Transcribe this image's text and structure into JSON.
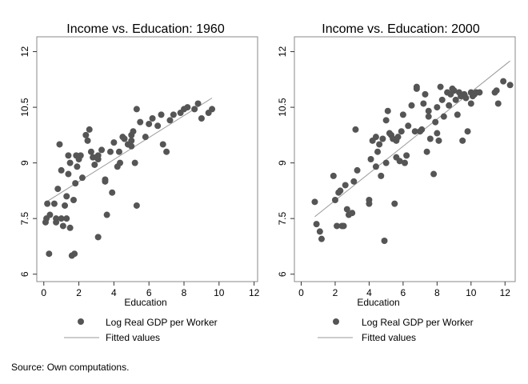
{
  "chart_data": [
    {
      "type": "scatter",
      "title": "Income vs. Education: 1960",
      "xlabel": "Education",
      "ylabel": "",
      "xlim": [
        -0.4,
        12.2
      ],
      "ylim": [
        5.8,
        12.4
      ],
      "xticks": [
        0,
        2,
        4,
        6,
        8,
        10,
        12
      ],
      "yticks": [
        6,
        7.5,
        9,
        10.5,
        12
      ],
      "ytick_labels": [
        "6",
        "7.5",
        "9",
        "10.5",
        "12"
      ],
      "grid": false,
      "series": [
        {
          "name": "Log Real GDP per Worker",
          "kind": "scatter",
          "color": "#555555",
          "points": [
            [
              0.1,
              7.4
            ],
            [
              0.15,
              7.5
            ],
            [
              0.2,
              7.9
            ],
            [
              0.3,
              6.55
            ],
            [
              0.35,
              7.6
            ],
            [
              0.6,
              7.9
            ],
            [
              0.7,
              7.5
            ],
            [
              0.7,
              7.4
            ],
            [
              0.8,
              8.3
            ],
            [
              0.9,
              9.5
            ],
            [
              1.0,
              7.5
            ],
            [
              1.0,
              8.8
            ],
            [
              1.1,
              7.3
            ],
            [
              1.2,
              7.85
            ],
            [
              1.3,
              7.5
            ],
            [
              1.3,
              8.1
            ],
            [
              1.4,
              8.7
            ],
            [
              1.4,
              9.2
            ],
            [
              1.5,
              9.0
            ],
            [
              1.5,
              7.25
            ],
            [
              1.6,
              6.5
            ],
            [
              1.7,
              8.0
            ],
            [
              1.75,
              6.55
            ],
            [
              1.8,
              8.45
            ],
            [
              1.85,
              9.2
            ],
            [
              1.9,
              8.9
            ],
            [
              2.0,
              9.1
            ],
            [
              2.1,
              9.2
            ],
            [
              2.2,
              8.6
            ],
            [
              2.4,
              9.75
            ],
            [
              2.5,
              9.6
            ],
            [
              2.6,
              9.9
            ],
            [
              2.7,
              9.3
            ],
            [
              2.8,
              9.15
            ],
            [
              2.9,
              8.95
            ],
            [
              3.0,
              9.15
            ],
            [
              3.1,
              9.1
            ],
            [
              3.1,
              9.2
            ],
            [
              3.1,
              7.0
            ],
            [
              3.3,
              9.35
            ],
            [
              3.5,
              8.5
            ],
            [
              3.5,
              8.55
            ],
            [
              3.6,
              7.6
            ],
            [
              3.8,
              9.3
            ],
            [
              3.9,
              8.2
            ],
            [
              4.0,
              9.55
            ],
            [
              4.2,
              8.9
            ],
            [
              4.3,
              9.3
            ],
            [
              4.35,
              9.0
            ],
            [
              4.5,
              9.7
            ],
            [
              4.6,
              9.65
            ],
            [
              4.8,
              9.5
            ],
            [
              5.0,
              9.45
            ],
            [
              5.0,
              9.6
            ],
            [
              5.0,
              9.75
            ],
            [
              5.1,
              9.85
            ],
            [
              5.2,
              9.0
            ],
            [
              5.3,
              10.45
            ],
            [
              5.3,
              7.85
            ],
            [
              5.5,
              10.1
            ],
            [
              5.8,
              9.7
            ],
            [
              6.0,
              10.05
            ],
            [
              6.2,
              10.2
            ],
            [
              6.5,
              10.0
            ],
            [
              6.7,
              10.3
            ],
            [
              6.8,
              9.5
            ],
            [
              7.0,
              9.3
            ],
            [
              7.2,
              10.15
            ],
            [
              7.4,
              10.3
            ],
            [
              7.8,
              10.35
            ],
            [
              8.0,
              10.45
            ],
            [
              8.2,
              10.5
            ],
            [
              8.6,
              10.45
            ],
            [
              8.8,
              10.6
            ],
            [
              9.0,
              10.2
            ],
            [
              9.4,
              10.35
            ],
            [
              9.6,
              10.45
            ]
          ]
        },
        {
          "name": "Fitted values",
          "kind": "line",
          "color": "#999999",
          "points": [
            [
              0.15,
              7.95
            ],
            [
              9.6,
              10.75
            ]
          ]
        }
      ]
    },
    {
      "type": "scatter",
      "title": "Income vs. Education: 2000",
      "xlabel": "Education",
      "ylabel": "",
      "xlim": [
        -0.4,
        12.6
      ],
      "ylim": [
        5.8,
        12.4
      ],
      "xticks": [
        0,
        2,
        4,
        6,
        8,
        10,
        12
      ],
      "yticks": [
        6,
        7.5,
        9,
        10.5,
        12
      ],
      "ytick_labels": [
        "6",
        "7.5",
        "9",
        "10.5",
        "12"
      ],
      "grid": false,
      "series": [
        {
          "name": "Log Real GDP per Worker",
          "kind": "scatter",
          "color": "#555555",
          "points": [
            [
              0.8,
              7.95
            ],
            [
              0.9,
              7.35
            ],
            [
              1.1,
              7.15
            ],
            [
              1.2,
              6.95
            ],
            [
              1.9,
              8.65
            ],
            [
              2.0,
              8.0
            ],
            [
              2.1,
              7.3
            ],
            [
              2.2,
              8.2
            ],
            [
              2.3,
              8.25
            ],
            [
              2.4,
              7.3
            ],
            [
              2.5,
              7.3
            ],
            [
              2.6,
              8.4
            ],
            [
              2.7,
              7.75
            ],
            [
              2.8,
              7.6
            ],
            [
              3.0,
              7.65
            ],
            [
              3.1,
              8.5
            ],
            [
              3.2,
              9.9
            ],
            [
              3.3,
              8.8
            ],
            [
              4.0,
              7.9
            ],
            [
              4.0,
              8.0
            ],
            [
              4.1,
              9.1
            ],
            [
              4.2,
              9.6
            ],
            [
              4.4,
              8.9
            ],
            [
              4.4,
              9.7
            ],
            [
              4.5,
              9.3
            ],
            [
              4.6,
              9.5
            ],
            [
              4.7,
              8.65
            ],
            [
              4.8,
              9.65
            ],
            [
              4.9,
              6.9
            ],
            [
              5.0,
              10.15
            ],
            [
              5.0,
              9.0
            ],
            [
              5.1,
              10.4
            ],
            [
              5.2,
              9.8
            ],
            [
              5.3,
              9.75
            ],
            [
              5.4,
              9.65
            ],
            [
              5.5,
              7.9
            ],
            [
              5.6,
              9.6
            ],
            [
              5.6,
              9.15
            ],
            [
              5.7,
              9.7
            ],
            [
              5.8,
              9.05
            ],
            [
              5.9,
              9.85
            ],
            [
              6.0,
              10.3
            ],
            [
              6.1,
              9.0
            ],
            [
              6.2,
              9.2
            ],
            [
              6.3,
              10.0
            ],
            [
              6.5,
              10.55
            ],
            [
              6.7,
              9.85
            ],
            [
              6.8,
              11.05
            ],
            [
              6.8,
              11.0
            ],
            [
              7.0,
              9.85
            ],
            [
              7.1,
              9.9
            ],
            [
              7.2,
              10.6
            ],
            [
              7.3,
              10.85
            ],
            [
              7.4,
              9.3
            ],
            [
              7.5,
              10.4
            ],
            [
              7.5,
              10.25
            ],
            [
              7.6,
              9.65
            ],
            [
              7.8,
              8.7
            ],
            [
              7.9,
              10.1
            ],
            [
              8.0,
              10.5
            ],
            [
              8.0,
              9.8
            ],
            [
              8.1,
              9.6
            ],
            [
              8.2,
              11.05
            ],
            [
              8.3,
              10.7
            ],
            [
              8.4,
              10.25
            ],
            [
              8.6,
              10.9
            ],
            [
              8.7,
              10.55
            ],
            [
              8.8,
              10.85
            ],
            [
              8.9,
              11.0
            ],
            [
              9.0,
              10.95
            ],
            [
              9.1,
              10.7
            ],
            [
              9.2,
              10.3
            ],
            [
              9.3,
              10.9
            ],
            [
              9.4,
              10.8
            ],
            [
              9.5,
              9.6
            ],
            [
              9.6,
              10.85
            ],
            [
              9.7,
              10.75
            ],
            [
              9.8,
              9.85
            ],
            [
              10.0,
              10.6
            ],
            [
              10.0,
              10.9
            ],
            [
              10.1,
              10.8
            ],
            [
              10.2,
              10.85
            ],
            [
              10.3,
              10.9
            ],
            [
              10.5,
              10.9
            ],
            [
              11.4,
              10.9
            ],
            [
              11.5,
              10.95
            ],
            [
              11.6,
              10.6
            ],
            [
              11.9,
              11.2
            ],
            [
              12.3,
              11.1
            ]
          ]
        },
        {
          "name": "Fitted values",
          "kind": "line",
          "color": "#999999",
          "points": [
            [
              0.8,
              7.55
            ],
            [
              12.3,
              11.75
            ]
          ]
        }
      ]
    }
  ],
  "legend": {
    "items": [
      {
        "label": "Log Real GDP per Worker",
        "kind": "marker"
      },
      {
        "label": "Fitted values",
        "kind": "line"
      }
    ]
  },
  "source_note": "Source: Own computations."
}
